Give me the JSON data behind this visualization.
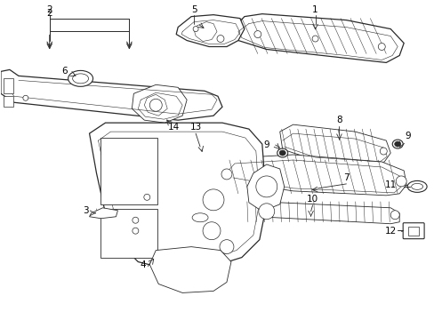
{
  "bg_color": "#ffffff",
  "line_color": "#2a2a2a",
  "text_color": "#000000",
  "fig_width": 4.89,
  "fig_height": 3.6,
  "dpi": 100,
  "lw_main": 0.9,
  "lw_thin": 0.6,
  "lw_rib": 0.35,
  "fontsize": 7.5
}
